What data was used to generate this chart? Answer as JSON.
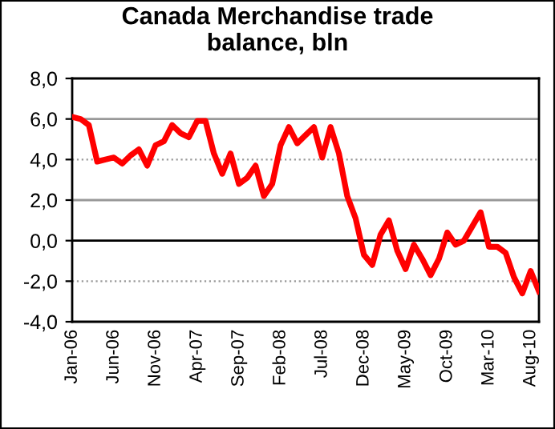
{
  "chart_data": {
    "type": "line",
    "title": "Canada Merchandise trade\nbalance, bln",
    "categories": [
      "Jan-06",
      null,
      null,
      null,
      null,
      "Jun-06",
      null,
      null,
      null,
      null,
      "Nov-06",
      null,
      null,
      null,
      null,
      "Apr-07",
      null,
      null,
      null,
      null,
      "Sep-07",
      null,
      null,
      null,
      null,
      "Feb-08",
      null,
      null,
      null,
      null,
      "Jul-08",
      null,
      null,
      null,
      null,
      "Dec-08",
      null,
      null,
      null,
      null,
      "May-09",
      null,
      null,
      null,
      null,
      "Oct-09",
      null,
      null,
      null,
      null,
      "Mar-10",
      null,
      null,
      null,
      null,
      "Aug-10",
      null
    ],
    "series": [
      {
        "color": "#ff0000",
        "values": [
          6.1,
          6.0,
          5.7,
          3.9,
          4.0,
          4.1,
          3.8,
          4.2,
          4.5,
          3.7,
          4.7,
          4.9,
          5.7,
          5.3,
          5.1,
          5.9,
          5.9,
          4.3,
          3.3,
          4.3,
          2.8,
          3.1,
          3.7,
          2.2,
          2.8,
          4.7,
          5.6,
          4.8,
          5.2,
          5.6,
          4.1,
          5.6,
          4.3,
          2.2,
          1.1,
          -0.7,
          -1.2,
          0.3,
          1.0,
          -0.5,
          -1.4,
          -0.2,
          -0.9,
          -1.7,
          -0.9,
          0.4,
          -0.2,
          0.0,
          0.7,
          1.4,
          -0.3,
          -0.3,
          -0.6,
          -1.8,
          -2.6,
          -1.5,
          -2.5
        ]
      }
    ],
    "ylim": [
      -4,
      8
    ],
    "yticks": [
      {
        "value": -4,
        "label": "-4,0"
      },
      {
        "value": -2,
        "label": "-2,0"
      },
      {
        "value": 0,
        "label": "0,0"
      },
      {
        "value": 2,
        "label": "2,0"
      },
      {
        "value": 4,
        "label": "4,0"
      },
      {
        "value": 6,
        "label": "6,0"
      },
      {
        "value": 8,
        "label": "8,0"
      }
    ],
    "grid": "y",
    "legend": false,
    "marker": "none",
    "line_style": "solid"
  }
}
